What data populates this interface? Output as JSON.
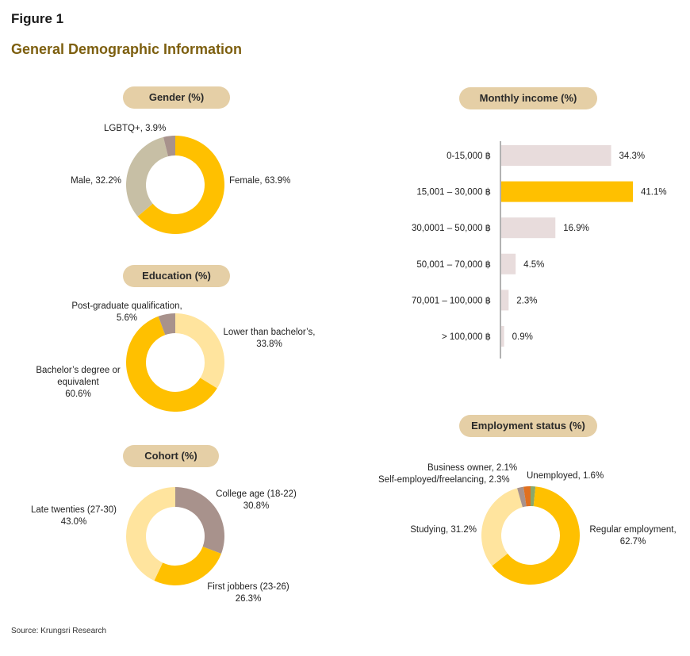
{
  "header": {
    "figure_label": "Figure 1",
    "title": "General Demographic Information"
  },
  "source": "Source: Krungsri Research",
  "chart_data": [
    {
      "type": "pie",
      "donut": true,
      "title": "Gender (%)",
      "series": [
        {
          "name": "Female",
          "value": 63.9,
          "color": "#ffc000",
          "label_lines": [
            "Female, 63.9%"
          ]
        },
        {
          "name": "Male",
          "value": 32.2,
          "color": "#c7bfa5",
          "label_lines": [
            "Male, 32.2%"
          ]
        },
        {
          "name": "LGBTQ+",
          "value": 3.9,
          "color": "#a8928c",
          "label_lines": [
            "LGBTQ+, 3.9%"
          ]
        }
      ]
    },
    {
      "type": "pie",
      "donut": true,
      "title": "Education (%)",
      "series": [
        {
          "name": "Lower than bachelor’s",
          "value": 33.8,
          "color": "#ffe49e",
          "label_lines": [
            "Lower than bachelor’s,",
            "33.8%"
          ]
        },
        {
          "name": "Bachelor’s degree or equivalent",
          "value": 60.6,
          "color": "#ffc000",
          "label_lines": [
            "Bachelor’s degree or",
            "equivalent",
            "60.6%"
          ]
        },
        {
          "name": "Post-graduate qualification",
          "value": 5.6,
          "color": "#a8928c",
          "label_lines": [
            "Post-graduate qualification,",
            "5.6%"
          ]
        }
      ]
    },
    {
      "type": "pie",
      "donut": true,
      "title": "Cohort (%)",
      "series": [
        {
          "name": "College age (18-22)",
          "value": 30.8,
          "color": "#a8928c",
          "label_lines": [
            "College age (18-22)",
            "30.8%"
          ]
        },
        {
          "name": "First jobbers (23-26)",
          "value": 26.3,
          "color": "#ffc000",
          "label_lines": [
            "First jobbers (23-26)",
            "26.3%"
          ]
        },
        {
          "name": "Late twenties (27-30)",
          "value": 43.0,
          "color": "#ffe49e",
          "label_lines": [
            "Late twenties (27-30)",
            "43.0%"
          ]
        }
      ]
    },
    {
      "type": "bar",
      "orientation": "horizontal",
      "title": "Monthly income (%)",
      "categories": [
        "0-15,000 ฿",
        "15,001 – 30,000 ฿",
        "30,0001 – 50,000 ฿",
        "50,001 – 70,000 ฿",
        "70,001 – 100,000 ฿",
        "> 100,000 ฿"
      ],
      "values": [
        34.3,
        41.1,
        16.9,
        4.5,
        2.3,
        0.9
      ],
      "value_labels": [
        "34.3%",
        "41.1%",
        "16.9%",
        "4.5%",
        "2.3%",
        "0.9%"
      ],
      "highlight_index": 1,
      "bar_color": "#e8dcdc",
      "highlight_color": "#ffc000"
    },
    {
      "type": "pie",
      "donut": true,
      "title": "Employment status (%)",
      "series": [
        {
          "name": "Unemployed",
          "value": 1.6,
          "color": "#8aa86a",
          "label_lines": [
            "Unemployed, 1.6%"
          ]
        },
        {
          "name": "Regular employment",
          "value": 62.7,
          "color": "#ffc000",
          "label_lines": [
            "Regular employment,",
            "62.7%"
          ]
        },
        {
          "name": "Studying",
          "value": 31.2,
          "color": "#ffe49e",
          "label_lines": [
            "Studying, 31.2%"
          ]
        },
        {
          "name": "Business owner",
          "value": 2.1,
          "color": "#a8928c",
          "label_lines": [
            "Business owner, 2.1%"
          ]
        },
        {
          "name": "Self-employed/freelancing",
          "value": 2.3,
          "color": "#e07020",
          "label_lines": [
            "Self-employed/freelancing, 2.3%"
          ]
        }
      ]
    }
  ]
}
